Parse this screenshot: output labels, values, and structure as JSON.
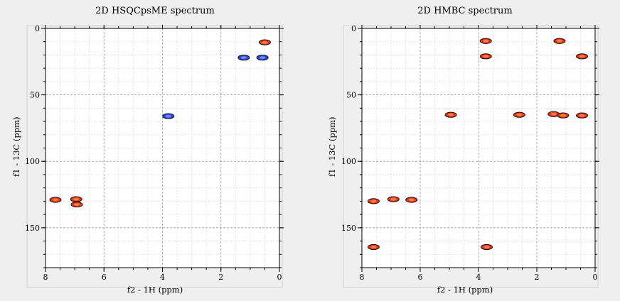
{
  "chart_data": [
    {
      "type": "scatter",
      "title": "2D HSQCpsME spectrum",
      "xlabel": "f2 - 1H (ppm)",
      "ylabel": "f1 - 13C (ppm)",
      "xlim": [
        8,
        0
      ],
      "ylim": [
        0,
        180
      ],
      "xticks": [
        "8",
        "6",
        "4",
        "2",
        "0"
      ],
      "yticks": [
        "0",
        "50",
        "100",
        "150"
      ],
      "grid": true,
      "series": [
        {
          "color": "#e8331a",
          "points": [
            {
              "x": 7.66,
              "y": 129.0
            },
            {
              "x": 6.95,
              "y": 128.5
            },
            {
              "x": 6.93,
              "y": 132.5
            },
            {
              "x": 0.5,
              "y": 10.5
            }
          ]
        },
        {
          "color": "#2244ee",
          "points": [
            {
              "x": 3.8,
              "y": 66.0
            },
            {
              "x": 1.22,
              "y": 22.0
            },
            {
              "x": 0.58,
              "y": 22.0
            }
          ]
        }
      ]
    },
    {
      "type": "scatter",
      "title": "2D HMBC spectrum",
      "xlabel": "f2 - 1H (ppm)",
      "ylabel": "f1 - 13C (ppm)",
      "xlim": [
        8,
        0
      ],
      "ylim": [
        0,
        180
      ],
      "xticks": [
        "8",
        "6",
        "4",
        "2",
        "0"
      ],
      "yticks": [
        "0",
        "50",
        "100",
        "150"
      ],
      "grid": true,
      "series": [
        {
          "color": "#e8331a",
          "points": [
            {
              "x": 3.75,
              "y": 9.5
            },
            {
              "x": 3.75,
              "y": 21.0
            },
            {
              "x": 1.22,
              "y": 9.5
            },
            {
              "x": 0.45,
              "y": 21.0
            },
            {
              "x": 4.95,
              "y": 65.0
            },
            {
              "x": 2.6,
              "y": 65.0
            },
            {
              "x": 1.42,
              "y": 64.5
            },
            {
              "x": 1.1,
              "y": 65.5
            },
            {
              "x": 0.45,
              "y": 65.5
            },
            {
              "x": 7.6,
              "y": 130.0
            },
            {
              "x": 6.92,
              "y": 128.5
            },
            {
              "x": 6.3,
              "y": 129.0
            },
            {
              "x": 7.6,
              "y": 164.5
            },
            {
              "x": 3.72,
              "y": 164.5
            }
          ]
        }
      ]
    }
  ]
}
